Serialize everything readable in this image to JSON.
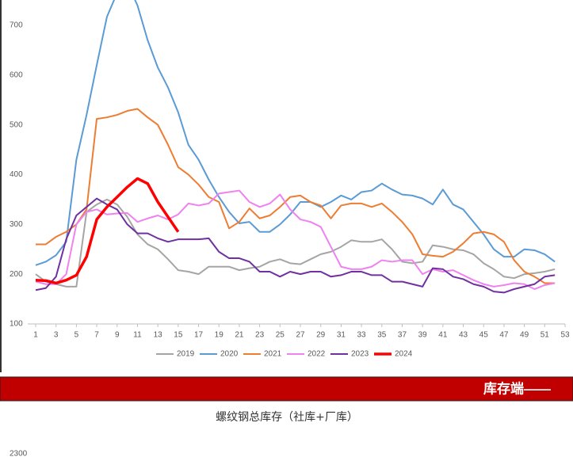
{
  "chart_data": [
    {
      "type": "line",
      "x": [
        1,
        2,
        3,
        4,
        5,
        6,
        7,
        8,
        9,
        10,
        11,
        12,
        13,
        14,
        15,
        16,
        17,
        18,
        19,
        20,
        21,
        22,
        23,
        24,
        25,
        26,
        27,
        28,
        29,
        30,
        31,
        32,
        33,
        34,
        35,
        36,
        37,
        38,
        39,
        40,
        41,
        42,
        43,
        44,
        45,
        46,
        47,
        48,
        49,
        50,
        51,
        52
      ],
      "xlim": [
        1,
        53
      ],
      "xticks": [
        1,
        3,
        5,
        7,
        9,
        11,
        13,
        15,
        17,
        19,
        21,
        23,
        25,
        27,
        29,
        31,
        33,
        35,
        37,
        39,
        41,
        43,
        45,
        47,
        49,
        51,
        53
      ],
      "ylim": [
        100,
        750
      ],
      "yticks": [
        100,
        200,
        300,
        400,
        500,
        600,
        700
      ],
      "grid": false,
      "legend": "bottom",
      "series": [
        {
          "name": "2019",
          "color": "#a5a5a5",
          "linewidth": 2,
          "values": [
            200,
            185,
            180,
            175,
            175,
            325,
            340,
            350,
            340,
            315,
            280,
            260,
            250,
            230,
            208,
            205,
            200,
            215,
            215,
            215,
            208,
            212,
            215,
            225,
            230,
            222,
            220,
            230,
            240,
            245,
            255,
            268,
            265,
            265,
            270,
            250,
            225,
            222,
            225,
            258,
            255,
            250,
            248,
            240,
            222,
            210,
            195,
            192,
            200,
            202,
            205,
            210
          ]
        },
        {
          "name": "2020",
          "color": "#5b9bd5",
          "linewidth": 2,
          "values": [
            218,
            225,
            238,
            265,
            430,
            520,
            620,
            717,
            765,
            785,
            740,
            670,
            615,
            575,
            525,
            460,
            430,
            390,
            355,
            325,
            302,
            305,
            285,
            285,
            300,
            320,
            345,
            345,
            335,
            345,
            358,
            350,
            365,
            368,
            382,
            370,
            360,
            358,
            352,
            340,
            370,
            340,
            330,
            305,
            280,
            250,
            235,
            235,
            250,
            248,
            240,
            225
          ]
        },
        {
          "name": "2021",
          "color": "#ed7d31",
          "linewidth": 2,
          "values": [
            260,
            260,
            275,
            285,
            300,
            330,
            512,
            515,
            520,
            528,
            532,
            515,
            500,
            460,
            415,
            400,
            380,
            355,
            345,
            292,
            305,
            332,
            312,
            318,
            335,
            355,
            358,
            345,
            338,
            312,
            338,
            342,
            342,
            335,
            342,
            325,
            305,
            280,
            240,
            237,
            235,
            245,
            262,
            282,
            285,
            280,
            265,
            228,
            205,
            195,
            182,
            182
          ]
        },
        {
          "name": "2022",
          "color": "#ee82ee",
          "linewidth": 2,
          "values": [
            185,
            180,
            180,
            200,
            300,
            325,
            330,
            320,
            322,
            323,
            305,
            312,
            318,
            310,
            320,
            342,
            338,
            342,
            362,
            365,
            368,
            345,
            335,
            342,
            360,
            330,
            310,
            305,
            295,
            255,
            215,
            210,
            210,
            215,
            228,
            225,
            228,
            228,
            200,
            210,
            205,
            208,
            198,
            188,
            180,
            175,
            178,
            182,
            180,
            170,
            178,
            182
          ]
        },
        {
          "name": "2023",
          "color": "#7030a0",
          "linewidth": 2,
          "values": [
            168,
            172,
            195,
            270,
            318,
            335,
            352,
            340,
            330,
            300,
            282,
            282,
            272,
            265,
            270,
            270,
            270,
            272,
            245,
            232,
            232,
            225,
            205,
            205,
            195,
            205,
            200,
            205,
            205,
            195,
            198,
            205,
            205,
            198,
            198,
            185,
            185,
            180,
            175,
            212,
            210,
            195,
            190,
            180,
            175,
            165,
            163,
            170,
            175,
            180,
            195,
            198
          ]
        },
        {
          "name": "2024",
          "color": "#ff0000",
          "linewidth": 3.5,
          "values": [
            188,
            187,
            182,
            188,
            198,
            235,
            310,
            335,
            355,
            375,
            392,
            382,
            345,
            315,
            285,
            null,
            null,
            null,
            null,
            null,
            null,
            null,
            null,
            null,
            null,
            null,
            null,
            null,
            null,
            null,
            null,
            null,
            null,
            null,
            null,
            null,
            null,
            null,
            null,
            null,
            null,
            null,
            null,
            null,
            null,
            null,
            null,
            null,
            null,
            null,
            null,
            null
          ]
        }
      ]
    },
    {
      "type": "line",
      "title": "螺纹钢总库存（社库+厂库）",
      "yticks": [
        2300
      ]
    }
  ],
  "banner": "库存端——"
}
